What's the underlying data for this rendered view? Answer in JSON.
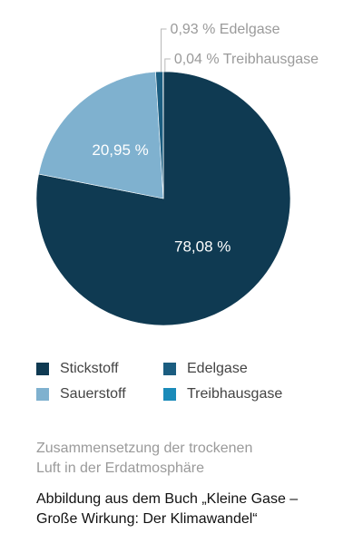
{
  "chart_data": {
    "type": "pie",
    "slices": [
      {
        "name": "Stickstoff",
        "value": 78.08,
        "label": "78,08 %",
        "color": "#0f3a52"
      },
      {
        "name": "Sauerstoff",
        "value": 20.95,
        "label": "20,95 %",
        "color": "#7fb1cf"
      },
      {
        "name": "Edelgase",
        "value": 0.93,
        "label": "0,93 % Edelgase",
        "color": "#1b5d80"
      },
      {
        "name": "Treibhausgase",
        "value": 0.04,
        "label": "0,04 % Treibhausgase",
        "color": "#1b8bb9"
      }
    ]
  },
  "legend": {
    "items": [
      {
        "label": "Stickstoff",
        "color": "#0f3a52"
      },
      {
        "label": "Edelgase",
        "color": "#1b5d80"
      },
      {
        "label": "Sauerstoff",
        "color": "#7fb1cf"
      },
      {
        "label": "Treibhausgase",
        "color": "#1b8bb9"
      }
    ]
  },
  "caption": {
    "line1": "Zusammensetzung der trockenen",
    "line2": "Luft in der Erdatmosphäre"
  },
  "source": {
    "line1": "Abbildung  aus dem Buch „Kleine Gase –",
    "line2": "Große Wirkung: Der Klimawandel“"
  }
}
